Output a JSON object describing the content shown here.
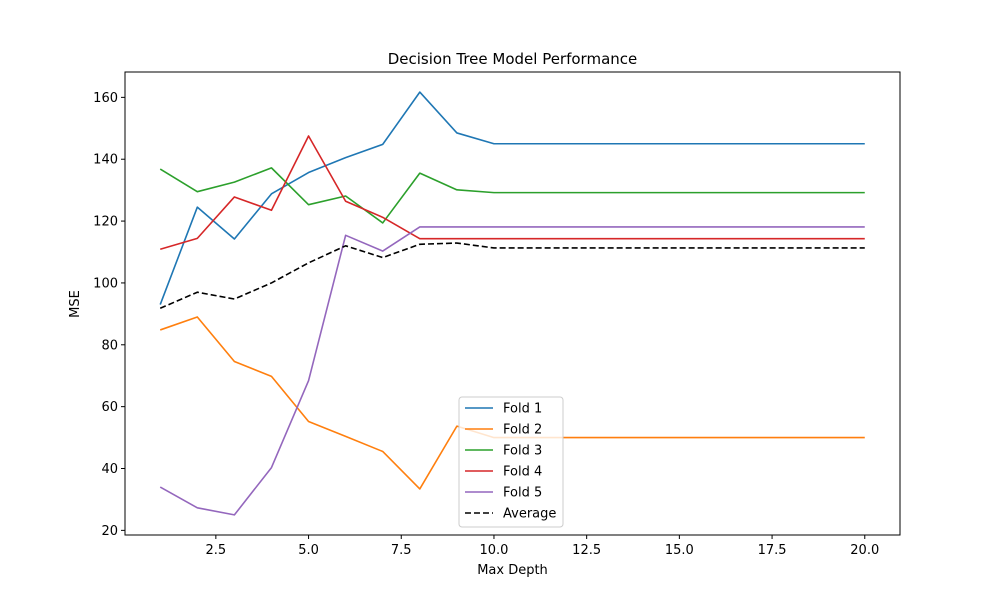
{
  "chart_data": {
    "type": "line",
    "title": "Decision Tree Model Performance",
    "xlabel": "Max Depth",
    "ylabel": "MSE",
    "x": [
      1,
      2,
      3,
      4,
      5,
      6,
      7,
      8,
      9,
      10,
      11,
      12,
      13,
      14,
      15,
      16,
      17,
      18,
      19,
      20
    ],
    "xlim": [
      0.05,
      20.95
    ],
    "ylim": [
      18.5,
      168.2
    ],
    "xticks": [
      2.5,
      5.0,
      7.5,
      10.0,
      12.5,
      15.0,
      17.5,
      20.0
    ],
    "xtick_labels": [
      "2.5",
      "5.0",
      "7.5",
      "10.0",
      "12.5",
      "15.0",
      "17.5",
      "20.0"
    ],
    "yticks": [
      20,
      40,
      60,
      80,
      100,
      120,
      140,
      160
    ],
    "ytick_labels": [
      "20",
      "40",
      "60",
      "80",
      "100",
      "120",
      "140",
      "160"
    ],
    "grid": false,
    "legend_position": "bottom-center",
    "series": [
      {
        "name": "Fold 1",
        "color": "#1f77b4",
        "dash": "solid",
        "values": [
          93.0,
          124.5,
          114.2,
          128.8,
          135.7,
          140.5,
          144.8,
          161.7,
          148.5,
          145.0,
          145.0,
          145.0,
          145.0,
          145.0,
          145.0,
          145.0,
          145.0,
          145.0,
          145.0,
          145.0
        ]
      },
      {
        "name": "Fold 2",
        "color": "#ff7f0e",
        "dash": "solid",
        "values": [
          84.8,
          89.0,
          74.6,
          69.8,
          55.2,
          50.4,
          45.5,
          33.4,
          53.7,
          50.0,
          50.0,
          50.0,
          50.0,
          50.0,
          50.0,
          50.0,
          50.0,
          50.0,
          50.0,
          50.0
        ]
      },
      {
        "name": "Fold 3",
        "color": "#2ca02c",
        "dash": "solid",
        "values": [
          136.8,
          129.5,
          132.6,
          137.2,
          125.3,
          128.1,
          119.4,
          135.5,
          130.1,
          129.2,
          129.2,
          129.2,
          129.2,
          129.2,
          129.2,
          129.2,
          129.2,
          129.2,
          129.2,
          129.2
        ]
      },
      {
        "name": "Fold 4",
        "color": "#d62728",
        "dash": "solid",
        "values": [
          110.9,
          114.4,
          127.8,
          123.5,
          147.5,
          126.4,
          121.2,
          114.3,
          114.3,
          114.3,
          114.3,
          114.3,
          114.3,
          114.3,
          114.3,
          114.3,
          114.3,
          114.3,
          114.3,
          114.3
        ]
      },
      {
        "name": "Fold 5",
        "color": "#9467bd",
        "dash": "solid",
        "values": [
          34.0,
          27.3,
          25.0,
          40.3,
          68.4,
          115.4,
          110.3,
          118.1,
          118.1,
          118.1,
          118.1,
          118.1,
          118.1,
          118.1,
          118.1,
          118.1,
          118.1,
          118.1,
          118.1,
          118.1
        ]
      },
      {
        "name": "Average",
        "color": "#000000",
        "dash": "dashed",
        "values": [
          91.8,
          97.0,
          94.8,
          100.0,
          106.5,
          112.0,
          108.2,
          112.5,
          112.9,
          111.3,
          111.3,
          111.3,
          111.3,
          111.3,
          111.3,
          111.3,
          111.3,
          111.3,
          111.3,
          111.3
        ]
      }
    ]
  }
}
